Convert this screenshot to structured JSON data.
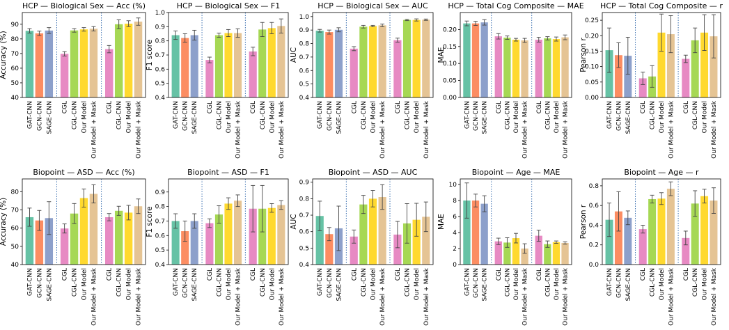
{
  "colors": {
    "GAT-CNN": "#66c2a5",
    "GCN-CNN": "#fc8d62",
    "SAGE-CNN": "#8da0cb",
    "CGL": "#e78ac3",
    "CGL-CNN": "#a6d854",
    "Our Model": "#ffd92f",
    "Our Model + Mask": "#e5c494",
    "separator": "#3a6fb0",
    "errorbar": "#444444"
  },
  "chart_data": [
    {
      "type": "bar",
      "title": "HCP — Biological Sex — Acc (%)",
      "ylabel": "Accuracy (%)",
      "ylim": [
        40,
        98
      ],
      "yticks": [
        "40",
        "50",
        "60",
        "70",
        "80",
        "90"
      ],
      "groups": [
        {
          "categories": [
            "GAT-CNN",
            "GCN-CNN",
            "SAGE-CNN"
          ],
          "values": [
            85.5,
            83.8,
            85.7
          ],
          "errors": [
            1.5,
            1.5,
            2.0
          ]
        },
        {
          "categories": [
            "CGL",
            "CGL-CNN",
            "Our Model",
            "Our Model + Mask"
          ],
          "values": [
            69.8,
            85.8,
            86.5,
            86.9
          ],
          "errors": [
            1.5,
            1.2,
            1.2,
            1.5
          ]
        },
        {
          "categories": [
            "CGL",
            "CGL-CNN",
            "Our Model",
            "Our Model + Mask"
          ],
          "values": [
            73.0,
            90.0,
            90.4,
            91.8
          ],
          "errors": [
            2.5,
            3.0,
            2.0,
            2.5
          ]
        }
      ]
    },
    {
      "type": "bar",
      "title": "HCP — Biological Sex — F1",
      "ylabel": "F1 score",
      "ylim": [
        0.4,
        1.0
      ],
      "yticks": [
        "0.4",
        "0.5",
        "0.6",
        "0.7",
        "0.8",
        "0.9",
        "1.0"
      ],
      "groups": [
        {
          "categories": [
            "GAT-CNN",
            "GCN-CNN",
            "SAGE-CNN"
          ],
          "values": [
            0.84,
            0.82,
            0.84
          ],
          "errors": [
            0.03,
            0.03,
            0.035
          ]
        },
        {
          "categories": [
            "CGL",
            "CGL-CNN",
            "Our Model",
            "Our Model + Mask"
          ],
          "values": [
            0.665,
            0.84,
            0.855,
            0.855
          ],
          "errors": [
            0.02,
            0.015,
            0.025,
            0.03
          ]
        },
        {
          "categories": [
            "CGL",
            "CGL-CNN",
            "Our Model",
            "Our Model + Mask"
          ],
          "values": [
            0.725,
            0.88,
            0.89,
            0.905
          ],
          "errors": [
            0.03,
            0.05,
            0.04,
            0.05
          ]
        }
      ]
    },
    {
      "type": "bar",
      "title": "HCP — Biological Sex — AUC",
      "ylabel": "AUC",
      "ylim": [
        0.4,
        1.03
      ],
      "yticks": [
        "0.4",
        "0.5",
        "0.6",
        "0.7",
        "0.8",
        "0.9",
        "1.0"
      ],
      "groups": [
        {
          "categories": [
            "GAT-CNN",
            "GCN-CNN",
            "SAGE-CNN"
          ],
          "values": [
            0.895,
            0.885,
            0.902
          ],
          "errors": [
            0.01,
            0.015,
            0.015
          ]
        },
        {
          "categories": [
            "CGL",
            "CGL-CNN",
            "Our Model",
            "Our Model + Mask"
          ],
          "values": [
            0.762,
            0.925,
            0.93,
            0.935
          ],
          "errors": [
            0.015,
            0.01,
            0.005,
            0.01
          ]
        },
        {
          "categories": [
            "CGL",
            "CGL-CNN",
            "Our Model",
            "Our Model + Mask"
          ],
          "values": [
            0.825,
            0.975,
            0.975,
            0.977
          ],
          "errors": [
            0.015,
            0.005,
            0.008,
            0.005
          ]
        }
      ]
    },
    {
      "type": "bar",
      "title": "HCP — Total Cog Composite — MAE",
      "ylabel": "MAE",
      "ylim": [
        0.0,
        0.25
      ],
      "yticks": [
        "0.00",
        "0.05",
        "0.10",
        "0.15",
        "0.20"
      ],
      "groups": [
        {
          "categories": [
            "GAT-CNN",
            "GCN-CNN",
            "SAGE-CNN"
          ],
          "values": [
            0.218,
            0.218,
            0.221
          ],
          "errors": [
            0.007,
            0.006,
            0.008
          ]
        },
        {
          "categories": [
            "CGL",
            "CGL-CNN",
            "Our Model",
            "Our Model + Mask"
          ],
          "values": [
            0.18,
            0.176,
            0.17,
            0.168
          ],
          "errors": [
            0.008,
            0.005,
            0.004,
            0.006
          ]
        },
        {
          "categories": [
            "CGL",
            "CGL-CNN",
            "Our Model",
            "Our Model + Mask"
          ],
          "values": [
            0.17,
            0.174,
            0.172,
            0.177
          ],
          "errors": [
            0.007,
            0.005,
            0.006,
            0.007
          ]
        }
      ]
    },
    {
      "type": "bar",
      "title": "HCP — Total Cog Composite — r",
      "ylabel": "Pearson r",
      "ylim": [
        0.0,
        0.275
      ],
      "yticks": [
        "0.00",
        "0.05",
        "0.10",
        "0.15",
        "0.20",
        "0.25"
      ],
      "groups": [
        {
          "categories": [
            "GAT-CNN",
            "GCN-CNN",
            "SAGE-CNN"
          ],
          "values": [
            0.153,
            0.137,
            0.135
          ],
          "errors": [
            0.072,
            0.04,
            0.06
          ]
        },
        {
          "categories": [
            "CGL",
            "CGL-CNN",
            "Our Model",
            "Our Model + Mask"
          ],
          "values": [
            0.062,
            0.068,
            0.21,
            0.205
          ],
          "errors": [
            0.02,
            0.035,
            0.06,
            0.06
          ]
        },
        {
          "categories": [
            "CGL",
            "CGL-CNN",
            "Our Model",
            "Our Model + Mask"
          ],
          "values": [
            0.125,
            0.185,
            0.21,
            0.198
          ],
          "errors": [
            0.012,
            0.04,
            0.058,
            0.07
          ]
        }
      ]
    },
    {
      "type": "bar",
      "title": "Biopoint — ASD — Acc (%)",
      "ylabel": "Accuracy (%)",
      "ylim": [
        40,
        87
      ],
      "yticks": [
        "40",
        "50",
        "60",
        "70",
        "80"
      ],
      "groups": [
        {
          "categories": [
            "GAT-CNN",
            "GCN-CNN",
            "SAGE-CNN"
          ],
          "values": [
            66.0,
            64.2,
            65.5
          ],
          "errors": [
            5.0,
            5.5,
            9.0
          ]
        },
        {
          "categories": [
            "CGL",
            "CGL-CNN",
            "Our Model",
            "Our Model + Mask"
          ],
          "values": [
            59.8,
            68.0,
            76.5,
            78.8
          ],
          "errors": [
            2.5,
            5.5,
            5.0,
            5.0
          ]
        },
        {
          "categories": [
            "CGL",
            "CGL-CNN",
            "Our Model",
            "Our Model + Mask"
          ],
          "values": [
            66.0,
            69.5,
            68.5,
            72.0
          ],
          "errors": [
            2.0,
            2.5,
            4.0,
            4.0
          ]
        }
      ]
    },
    {
      "type": "bar",
      "title": "Biopoint — ASD — F1",
      "ylabel": "F1 score",
      "ylim": [
        0.4,
        0.99
      ],
      "yticks": [
        "0.4",
        "0.5",
        "0.6",
        "0.7",
        "0.8",
        "0.9"
      ],
      "groups": [
        {
          "categories": [
            "GAT-CNN",
            "GCN-CNN",
            "SAGE-CNN"
          ],
          "values": [
            0.7,
            0.63,
            0.7
          ],
          "errors": [
            0.05,
            0.07,
            0.05
          ]
        },
        {
          "categories": [
            "CGL",
            "CGL-CNN",
            "Our Model",
            "Our Model + Mask"
          ],
          "values": [
            0.685,
            0.745,
            0.82,
            0.84
          ],
          "errors": [
            0.03,
            0.06,
            0.04,
            0.04
          ]
        },
        {
          "categories": [
            "CGL",
            "CGL-CNN",
            "Our Model",
            "Our Model + Mask"
          ],
          "values": [
            0.785,
            0.785,
            0.79,
            0.81
          ],
          "errors": [
            0.16,
            0.16,
            0.03,
            0.03
          ]
        }
      ]
    },
    {
      "type": "bar",
      "title": "Biopoint — ASD — AUC",
      "ylabel": "AUC",
      "ylim": [
        0.4,
        0.92
      ],
      "yticks": [
        "0.4",
        "0.5",
        "0.6",
        "0.7",
        "0.8",
        "0.9"
      ],
      "groups": [
        {
          "categories": [
            "GAT-CNN",
            "GCN-CNN",
            "SAGE-CNN"
          ],
          "values": [
            0.695,
            0.585,
            0.62
          ],
          "errors": [
            0.09,
            0.04,
            0.135
          ]
        },
        {
          "categories": [
            "CGL",
            "CGL-CNN",
            "Our Model",
            "Our Model + Mask"
          ],
          "values": [
            0.57,
            0.765,
            0.8,
            0.81
          ],
          "errors": [
            0.04,
            0.055,
            0.05,
            0.075
          ]
        },
        {
          "categories": [
            "CGL",
            "CGL-CNN",
            "Our Model",
            "Our Model + Mask"
          ],
          "values": [
            0.582,
            0.65,
            0.672,
            0.69
          ],
          "errors": [
            0.08,
            0.12,
            0.1,
            0.09
          ]
        }
      ]
    },
    {
      "type": "bar",
      "title": "Biopoint — Age — MAE",
      "ylabel": "MAE",
      "ylim": [
        0,
        10.7
      ],
      "yticks": [
        "0",
        "2",
        "4",
        "6",
        "8",
        "10"
      ],
      "groups": [
        {
          "categories": [
            "GAT-CNN",
            "GCN-CNN",
            "SAGE-CNN"
          ],
          "values": [
            8.0,
            8.0,
            7.6
          ],
          "errors": [
            2.2,
            0.8,
            1.0
          ]
        },
        {
          "categories": [
            "CGL",
            "CGL-CNN",
            "Our Model",
            "Our Model + Mask"
          ],
          "values": [
            2.9,
            2.75,
            3.3,
            2.0
          ],
          "errors": [
            0.4,
            0.6,
            0.6,
            0.6
          ]
        },
        {
          "categories": [
            "CGL",
            "CGL-CNN",
            "Our Model",
            "Our Model + Mask"
          ],
          "values": [
            3.6,
            2.55,
            2.8,
            2.7
          ],
          "errors": [
            0.7,
            0.4,
            0.15,
            0.15
          ]
        }
      ]
    },
    {
      "type": "bar",
      "title": "Biopoint — Age — r",
      "ylabel": "Pearson r",
      "ylim": [
        0.0,
        0.87
      ],
      "yticks": [
        "0.0",
        "0.2",
        "0.4",
        "0.6",
        "0.8"
      ],
      "groups": [
        {
          "categories": [
            "GAT-CNN",
            "GCN-CNN",
            "SAGE-CNN"
          ],
          "values": [
            0.455,
            0.54,
            0.475
          ],
          "errors": [
            0.17,
            0.2,
            0.07
          ]
        },
        {
          "categories": [
            "CGL",
            "CGL-CNN",
            "Our Model",
            "Our Model + Mask"
          ],
          "values": [
            0.36,
            0.665,
            0.67,
            0.77
          ],
          "errors": [
            0.04,
            0.04,
            0.06,
            0.07
          ]
        },
        {
          "categories": [
            "CGL",
            "CGL-CNN",
            "Our Model",
            "Our Model + Mask"
          ],
          "values": [
            0.27,
            0.62,
            0.695,
            0.65
          ],
          "errors": [
            0.07,
            0.13,
            0.07,
            0.13
          ]
        }
      ]
    }
  ]
}
